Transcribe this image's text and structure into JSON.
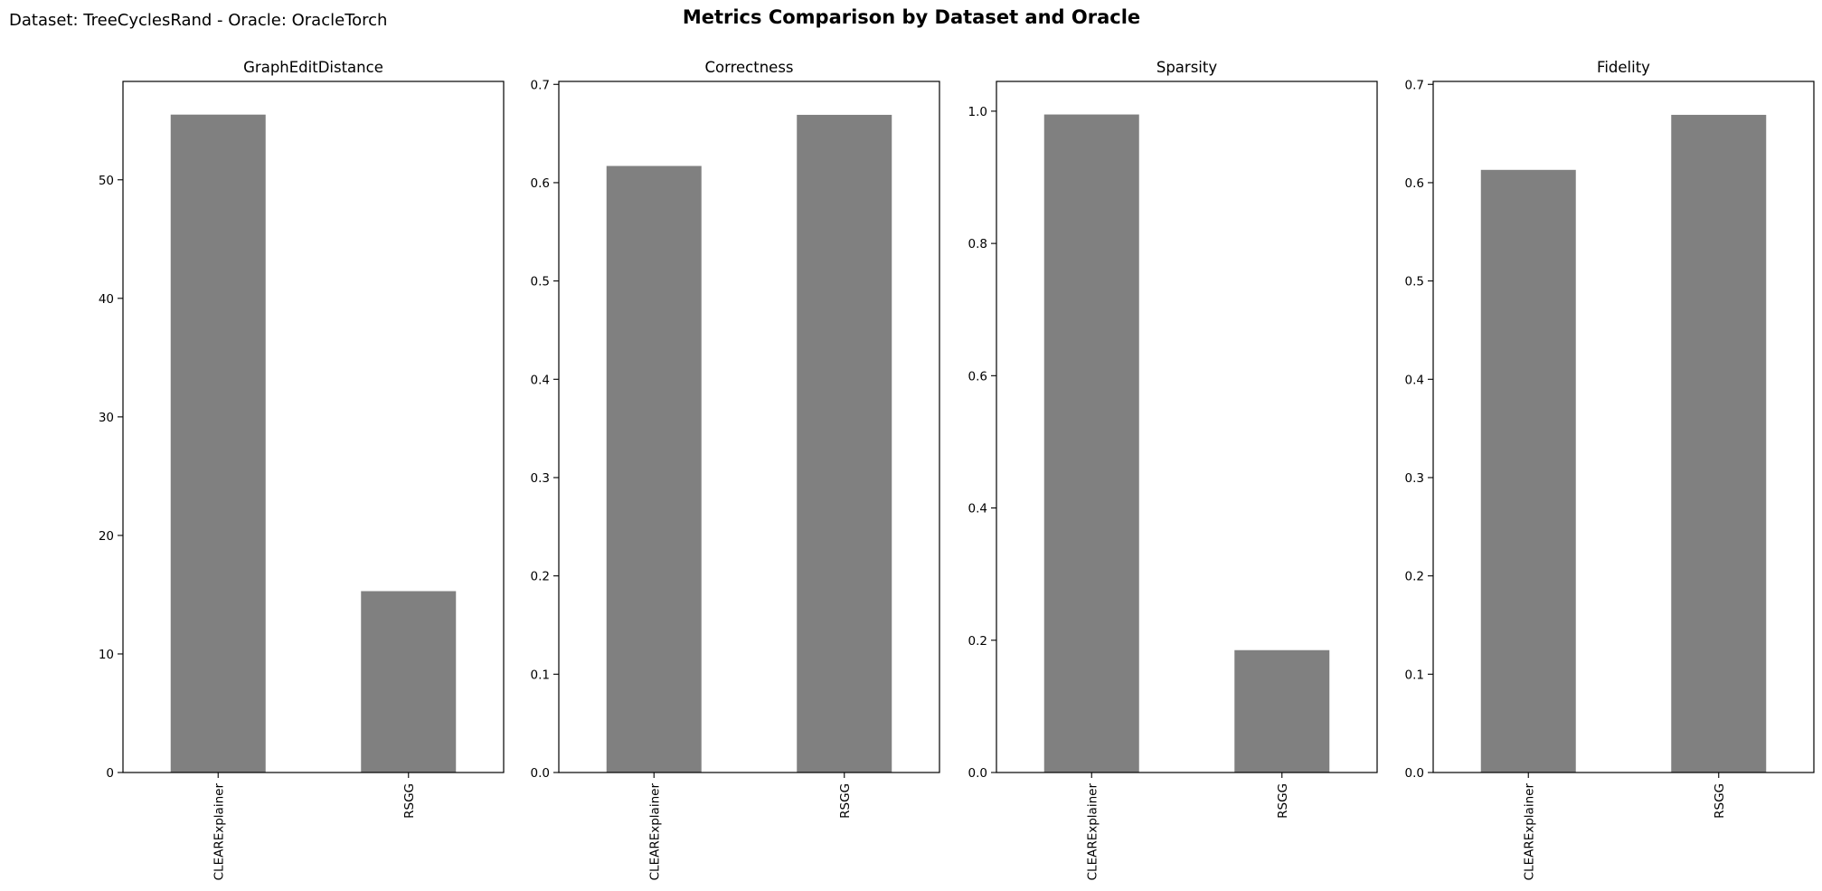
{
  "figure": {
    "title": "Metrics Comparison by Dataset and Oracle",
    "subtitle": "Dataset: TreeCyclesRand - Oracle: OracleTorch"
  },
  "colors": {
    "bar": "#808080",
    "axis": "#000000",
    "background": "#ffffff"
  },
  "chart_data": [
    {
      "type": "bar",
      "title": "GraphEditDistance",
      "categories": [
        "CLEARExplainer",
        "RSGG"
      ],
      "values": [
        55.5,
        15.3
      ],
      "ylim": [
        0,
        58.3
      ],
      "yticks": [
        0,
        10,
        20,
        30,
        40,
        50
      ],
      "ytick_labels": [
        "0",
        "10",
        "20",
        "30",
        "40",
        "50"
      ],
      "grid": false
    },
    {
      "type": "bar",
      "title": "Correctness",
      "categories": [
        "CLEARExplainer",
        "RSGG"
      ],
      "values": [
        0.617,
        0.669
      ],
      "ylim": [
        0,
        0.703
      ],
      "yticks": [
        0,
        0.1,
        0.2,
        0.3,
        0.4,
        0.5,
        0.6,
        0.7
      ],
      "ytick_labels": [
        "0.0",
        "0.1",
        "0.2",
        "0.3",
        "0.4",
        "0.5",
        "0.6",
        "0.7"
      ],
      "grid": false
    },
    {
      "type": "bar",
      "title": "Sparsity",
      "categories": [
        "CLEARExplainer",
        "RSGG"
      ],
      "values": [
        0.995,
        0.185
      ],
      "ylim": [
        0,
        1.045
      ],
      "yticks": [
        0,
        0.2,
        0.4,
        0.6,
        0.8,
        1.0
      ],
      "ytick_labels": [
        "0.0",
        "0.2",
        "0.4",
        "0.6",
        "0.8",
        "1.0"
      ],
      "grid": false
    },
    {
      "type": "bar",
      "title": "Fidelity",
      "categories": [
        "CLEARExplainer",
        "RSGG"
      ],
      "values": [
        0.613,
        0.669
      ],
      "ylim": [
        0,
        0.703
      ],
      "yticks": [
        0,
        0.1,
        0.2,
        0.3,
        0.4,
        0.5,
        0.6,
        0.7
      ],
      "ytick_labels": [
        "0.0",
        "0.1",
        "0.2",
        "0.3",
        "0.4",
        "0.5",
        "0.6",
        "0.7"
      ],
      "grid": false
    }
  ]
}
